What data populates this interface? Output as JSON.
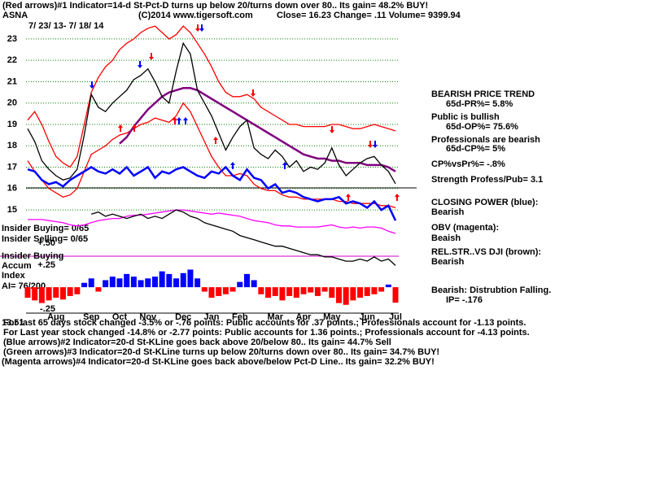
{
  "header": {
    "line1": "(Red arrows)#1 Indicator=14-d St-Pct-D turns up below 20/turns down over 80.. Its gain= 48.2% BUY!",
    "symbol": "ASNA",
    "copyright": "(C)2014 www.tigersoft.com",
    "quote": "Close= 16.23 Change= .11 Volume= 9399.94",
    "dates": "7/ 23/ 13- 7/ 18/ 14"
  },
  "sidebar": [
    "BEARISH PRICE TREND",
    "65d-PR%= 5.8%",
    "Public is bullish",
    "65d-OP%= 75.6%",
    "Professionals are bearish",
    "65d-CP%= 5%",
    "CP%vsPr%= -.8%",
    "Strength Profess/Pub= 3.1",
    "CLOSING POWER (blue):",
    "Bearish",
    "OBV (magenta):",
    "Beaish",
    "REL.STR..VS DJI (brown):",
    "Bearish",
    "Bearish: Distrubtion Falling.",
    "IP= -.176"
  ],
  "left_labels": [
    "Insider Buying= 0/65",
    "Insider Selling= 0/65",
    "Insider Buying",
    "Accum",
    "Index",
    "AI= 76/200"
  ],
  "footer": [
    "13.51",
    "For last 65 days stock changed -3.5% or -.76 points: Public accounts for .37 points.; Professionals account for -1.13 points.",
    "For Last year stock changed -14.8% or -2.77 points: Public accounts for 1.36 points.; Professionals account for -4.13 points.",
    "(Blue arrows)#2 Indicator=20-d St-KLine goes back above 20/below 80.. Its gain= 44.7% Sell",
    "(Green arrows)#3 Indicator=20-d St-KLine turns up below 20/turns down over 80.. Its gain= 34.7% BUY!",
    "(Magenta arrows)#4 Indicator=20-d St-KLine goes back above/below Pct-D Line.. Its gain= 32.2% BUY!"
  ],
  "chart_data": [
    {
      "type": "line",
      "grid": true,
      "ylim": [
        12.3,
        24.1
      ],
      "yticks": [
        15,
        16,
        17,
        18,
        19,
        20,
        21,
        22,
        23
      ],
      "categories": [
        null,
        null,
        null,
        null,
        "Aug",
        null,
        null,
        null,
        null,
        "Sep",
        null,
        null,
        null,
        "Oct",
        null,
        null,
        null,
        "Nov",
        null,
        null,
        null,
        null,
        "Dec",
        null,
        null,
        null,
        "Jan",
        null,
        null,
        null,
        "Feb",
        null,
        null,
        null,
        null,
        "Mar",
        null,
        null,
        null,
        "Apr",
        null,
        null,
        null,
        "May",
        null,
        null,
        null,
        null,
        "Jun",
        null,
        null,
        null,
        "Jul"
      ],
      "series": [
        {
          "color": "#ff0000",
          "values": [
            19.2,
            19.6,
            19.0,
            18.2,
            17.5,
            17.2,
            17.0,
            17.5,
            19.0,
            20.5,
            21.2,
            21.7,
            22.0,
            22.5,
            22.8,
            23.0,
            23.3,
            23.5,
            23.6,
            23.3,
            23.0,
            23.2,
            23.6,
            23.3,
            22.8,
            22.3,
            21.7,
            21.0,
            20.5,
            20.3,
            20.3,
            20.4,
            20.2,
            19.8,
            19.6,
            19.4,
            19.2,
            19.0,
            19.0,
            18.9,
            18.9,
            18.9,
            18.9,
            19.0,
            19.0,
            18.9,
            18.8,
            18.8,
            18.9,
            19.0,
            18.9,
            18.8,
            18.7
          ]
        },
        {
          "color": "#ff0000",
          "values": [
            17.3,
            16.8,
            16.4,
            16.0,
            15.8,
            15.6,
            15.7,
            16.0,
            16.8,
            17.6,
            17.8,
            18.0,
            18.3,
            18.5,
            18.6,
            18.8,
            19.0,
            19.1,
            19.3,
            19.2,
            19.1,
            19.4,
            20.0,
            19.6,
            18.9,
            18.2,
            17.5,
            17.0,
            16.6,
            16.6,
            16.7,
            16.6,
            16.2,
            16.0,
            15.9,
            15.9,
            15.7,
            15.6,
            15.6,
            15.5,
            15.5,
            15.5,
            15.5,
            15.5,
            15.4,
            15.4,
            15.3,
            15.3,
            15.3,
            15.3,
            15.2,
            15.2,
            15.1
          ]
        },
        {
          "color": "#800080",
          "values": [
            null,
            null,
            null,
            null,
            null,
            null,
            null,
            null,
            null,
            null,
            null,
            null,
            null,
            18.1,
            18.4,
            18.9,
            19.3,
            19.7,
            20.0,
            20.3,
            20.5,
            20.6,
            20.7,
            20.7,
            20.6,
            20.4,
            20.2,
            20.0,
            19.8,
            19.6,
            19.4,
            19.2,
            19.0,
            18.8,
            18.6,
            18.4,
            18.2,
            18.0,
            17.8,
            17.6,
            17.5,
            17.4,
            17.4,
            17.3,
            17.3,
            17.2,
            17.2,
            17.2,
            17.1,
            17.1,
            17.1,
            17.0,
            16.8
          ]
        },
        {
          "color": "#000000",
          "values": [
            18.8,
            18.2,
            17.3,
            16.9,
            16.6,
            16.4,
            16.5,
            16.9,
            18.5,
            20.4,
            19.8,
            19.6,
            20.0,
            20.3,
            20.6,
            21.1,
            21.3,
            21.6,
            21.0,
            20.3,
            20.0,
            21.5,
            22.8,
            22.3,
            20.6,
            20.0,
            19.4,
            18.6,
            17.8,
            18.4,
            18.9,
            19.2,
            17.9,
            17.6,
            17.4,
            17.8,
            17.5,
            17.0,
            17.3,
            16.8,
            17.0,
            16.9,
            17.2,
            17.9,
            17.1,
            16.6,
            16.9,
            17.2,
            17.4,
            17.5,
            17.1,
            16.8,
            16.23
          ]
        },
        {
          "color": "#0000ff",
          "values": [
            16.9,
            16.8,
            16.4,
            16.2,
            16.3,
            16.1,
            16.4,
            16.6,
            16.8,
            17.0,
            16.8,
            16.7,
            16.9,
            16.7,
            17.0,
            16.6,
            16.8,
            17.0,
            16.5,
            16.8,
            16.7,
            16.9,
            17.0,
            16.8,
            16.6,
            16.5,
            16.8,
            16.7,
            17.0,
            16.6,
            16.4,
            16.9,
            16.5,
            16.4,
            16.0,
            16.2,
            15.8,
            15.9,
            15.8,
            15.6,
            15.5,
            15.4,
            15.5,
            15.5,
            15.6,
            15.3,
            15.4,
            15.3,
            15.1,
            15.4,
            15.0,
            15.2,
            14.5
          ]
        },
        {
          "color": "#ff00ff",
          "values": [
            14.55,
            14.55,
            14.55,
            14.5,
            14.45,
            14.4,
            14.3,
            14.25,
            14.3,
            14.4,
            14.5,
            14.55,
            14.6,
            14.6,
            14.7,
            14.75,
            14.75,
            14.8,
            14.85,
            14.9,
            14.95,
            15.0,
            15.0,
            14.95,
            14.9,
            14.85,
            14.8,
            14.85,
            14.8,
            14.75,
            14.7,
            14.6,
            14.5,
            14.45,
            14.4,
            14.3,
            14.25,
            14.25,
            14.2,
            14.2,
            14.2,
            14.2,
            14.25,
            14.3,
            14.2,
            14.15,
            14.2,
            14.15,
            14.2,
            14.2,
            14.15,
            14.0,
            13.9
          ]
        },
        {
          "color": "#000000",
          "values": [
            null,
            null,
            null,
            null,
            null,
            null,
            null,
            null,
            null,
            14.8,
            14.9,
            14.7,
            14.8,
            14.7,
            14.6,
            14.7,
            14.8,
            14.6,
            14.7,
            14.6,
            14.8,
            15.0,
            14.9,
            14.7,
            14.6,
            14.4,
            14.3,
            14.2,
            14.1,
            14.0,
            13.8,
            13.7,
            13.6,
            13.5,
            13.4,
            13.3,
            13.3,
            13.2,
            13.1,
            13.0,
            12.9,
            12.9,
            12.8,
            12.8,
            12.7,
            12.6,
            12.6,
            12.7,
            12.6,
            12.8,
            12.6,
            12.7,
            12.4
          ]
        }
      ]
    },
    {
      "type": "bar",
      "ylim": [
        -0.35,
        0.5
      ],
      "yticks": [
        {
          "value": 0.5,
          "label": "+.50"
        },
        {
          "value": 0.25,
          "label": "+.25"
        },
        {
          "value": -0.25,
          "label": "-.25"
        }
      ],
      "color_positive": "#0000ff",
      "color_negative": "#ff0000",
      "values": [
        -0.12,
        -0.15,
        -0.18,
        -0.15,
        -0.12,
        -0.14,
        -0.1,
        -0.08,
        0.05,
        0.1,
        -0.05,
        0.08,
        0.12,
        0.1,
        0.15,
        0.12,
        0.08,
        0.1,
        0.12,
        0.18,
        0.15,
        0.1,
        0.16,
        0.2,
        0.1,
        -0.05,
        -0.12,
        -0.1,
        -0.08,
        -0.05,
        0.06,
        0.15,
        0.08,
        -0.08,
        -0.12,
        -0.1,
        -0.15,
        -0.1,
        -0.12,
        -0.08,
        -0.06,
        -0.1,
        -0.05,
        -0.12,
        -0.18,
        -0.2,
        -0.15,
        -0.12,
        -0.1,
        -0.08,
        -0.05,
        0.03,
        -0.176
      ]
    }
  ]
}
